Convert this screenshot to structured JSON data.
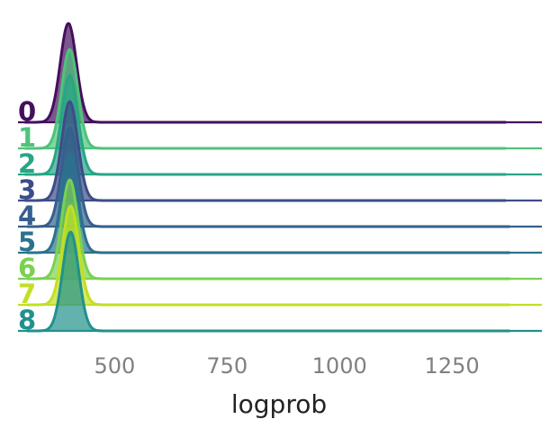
{
  "chart_data": {
    "type": "area",
    "subtype": "ridgeline",
    "title": "",
    "xlabel": "logprob",
    "ylabel": "",
    "xlim": [
      285,
      1450
    ],
    "xticks": [
      500,
      750,
      1000,
      1250
    ],
    "xtick_labels": [
      "500",
      "750",
      "1000",
      "1250"
    ],
    "grid": false,
    "legend": "none",
    "series": [
      {
        "name": "0",
        "color": "#440f5c",
        "peak_x": 397,
        "sd": 18,
        "peak_height": 1.0,
        "x_start": 300,
        "x_end": 1370
      },
      {
        "name": "1",
        "color": "#4ec37a",
        "peak_x": 400,
        "sd": 18,
        "peak_height": 1.0,
        "x_start": 300,
        "x_end": 1370
      },
      {
        "name": "2",
        "color": "#27a685",
        "peak_x": 400,
        "sd": 18,
        "peak_height": 1.0,
        "x_start": 300,
        "x_end": 1370
      },
      {
        "name": "3",
        "color": "#3d4c89",
        "peak_x": 400,
        "sd": 18,
        "peak_height": 1.0,
        "x_start": 300,
        "x_end": 1370
      },
      {
        "name": "4",
        "color": "#355f8d",
        "peak_x": 400,
        "sd": 18,
        "peak_height": 1.0,
        "x_start": 305,
        "x_end": 1380
      },
      {
        "name": "5",
        "color": "#2b728e",
        "peak_x": 400,
        "sd": 18,
        "peak_height": 1.0,
        "x_start": 305,
        "x_end": 1380
      },
      {
        "name": "6",
        "color": "#7ad151",
        "peak_x": 400,
        "sd": 18,
        "peak_height": 1.0,
        "x_start": 305,
        "x_end": 1380
      },
      {
        "name": "7",
        "color": "#c2df23",
        "peak_x": 402,
        "sd": 18,
        "peak_height": 1.0,
        "x_start": 305,
        "x_end": 1380
      },
      {
        "name": "8",
        "color": "#21918c",
        "peak_x": 402,
        "sd": 18,
        "peak_height": 1.0,
        "x_start": 305,
        "x_end": 1380
      }
    ]
  }
}
